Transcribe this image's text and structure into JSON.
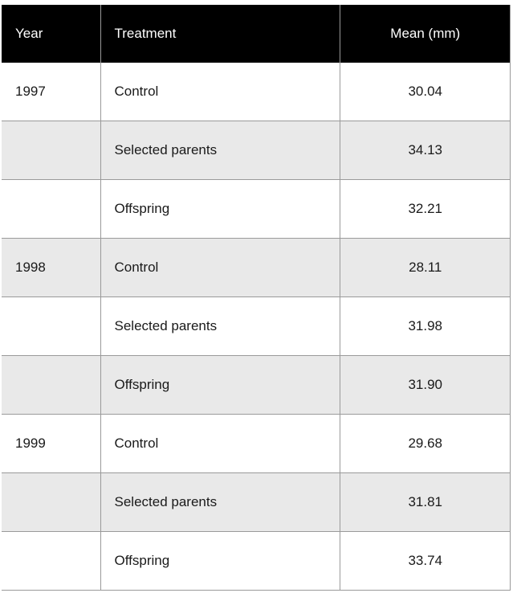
{
  "table": {
    "headers": {
      "year": "Year",
      "treatment": "Treatment",
      "mean": "Mean (mm)"
    },
    "rows": [
      {
        "year": "1997",
        "treatment": "Control",
        "mean": "30.04"
      },
      {
        "year": "",
        "treatment": "Selected parents",
        "mean": "34.13"
      },
      {
        "year": "",
        "treatment": "Offspring",
        "mean": "32.21"
      },
      {
        "year": "1998",
        "treatment": "Control",
        "mean": "28.11"
      },
      {
        "year": "",
        "treatment": "Selected parents",
        "mean": "31.98"
      },
      {
        "year": "",
        "treatment": "Offspring",
        "mean": "31.90"
      },
      {
        "year": "1999",
        "treatment": "Control",
        "mean": "29.68"
      },
      {
        "year": "",
        "treatment": "Selected parents",
        "mean": "31.81"
      },
      {
        "year": "",
        "treatment": "Offspring",
        "mean": "33.74"
      }
    ]
  },
  "colors": {
    "header_bg": "#000000",
    "header_text": "#ffffff",
    "stripe_bg": "#e9e9e9",
    "row_bg": "#ffffff",
    "border": "#9a9a9a"
  }
}
